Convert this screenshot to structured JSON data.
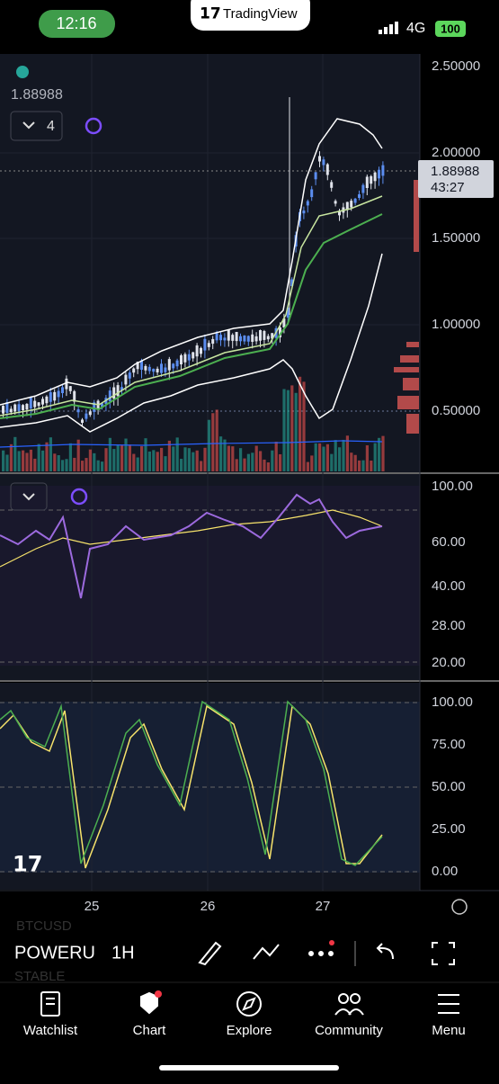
{
  "status_bar": {
    "time": "12:16",
    "app": "TradingView",
    "network": "4G",
    "battery": "100"
  },
  "chart": {
    "last_value": "1.88988",
    "indicator_count": "4",
    "price_axis": [
      "2.50000",
      "2.00000",
      "1.50000",
      "1.00000",
      "0.50000"
    ],
    "price_badge": {
      "price": "1.88988",
      "countdown": "43:27"
    },
    "rsi_axis": [
      "100.00",
      "60.00",
      "40.00",
      "28.00",
      "20.00"
    ],
    "stoch_axis": [
      "100.00",
      "75.00",
      "50.00",
      "25.00",
      "0.00"
    ],
    "time_axis": [
      "25",
      "26",
      "27"
    ]
  },
  "toolbar": {
    "symbol": "POWERU",
    "interval": "1H",
    "ghost_top": "BTCUSD",
    "ghost_bottom": "STABLE"
  },
  "nav": [
    "Watchlist",
    "Chart",
    "Explore",
    "Community",
    "Menu"
  ]
}
